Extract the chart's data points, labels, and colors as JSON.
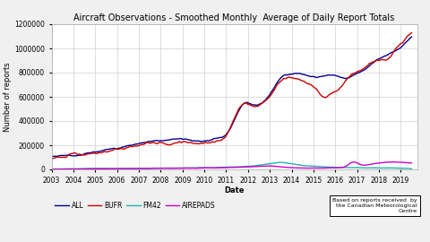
{
  "title": "Aircraft Observations - Smoothed Monthly  Average of Daily Report Totals",
  "xlabel": "Date",
  "ylabel": "Number of reports",
  "xlim": [
    2003.0,
    2019.75
  ],
  "ylim": [
    0,
    1200000
  ],
  "yticks": [
    0,
    200000,
    400000,
    600000,
    800000,
    1000000,
    1200000
  ],
  "ytick_labels": [
    "0",
    "200000",
    "400000",
    "600000",
    "800000",
    "1000000",
    "1200000"
  ],
  "xtick_years": [
    2003,
    2004,
    2005,
    2006,
    2007,
    2008,
    2009,
    2010,
    2011,
    2012,
    2013,
    2014,
    2015,
    2016,
    2017,
    2018,
    2019
  ],
  "colors": {
    "ALL": "#00008B",
    "BUFR": "#CC0000",
    "FM42": "#20B2AA",
    "AIREPADS": "#CC00CC"
  },
  "annotation": "Based on reports received  by\nthe Canadian Meteorological\nCentre",
  "background_color": "#f0f0f0",
  "plot_bg": "#ffffff",
  "grid_color": "#d0d0d0",
  "title_fontsize": 7.0,
  "axis_label_fontsize": 6.0,
  "tick_fontsize": 5.5,
  "legend_fontsize": 5.5
}
